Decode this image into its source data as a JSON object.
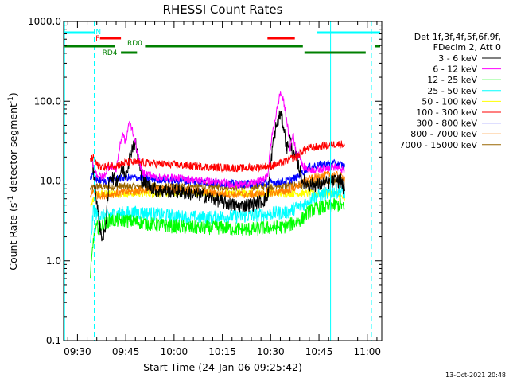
{
  "chart_data": {
    "type": "line",
    "title": "RHESSI Count Rates",
    "xlabel": "Start Time (24-Jan-06 09:25:42)",
    "ylabel_parts": [
      "Count Rate (s",
      "-1",
      " detector segment",
      "-1",
      ")"
    ],
    "y_scale": "log",
    "ylim": [
      0.1,
      1000
    ],
    "xlim": [
      "09:25:42",
      "11:04:30"
    ],
    "x_ticks": [
      "09:30",
      "09:45",
      "10:00",
      "10:15",
      "10:30",
      "10:45",
      "11:00"
    ],
    "x_tick_minutes": [
      570,
      585,
      600,
      615,
      630,
      645,
      660
    ],
    "y_ticks": [
      "0.1",
      "1.0",
      "10.0",
      "100.0",
      "1000.0"
    ],
    "y_tick_values": [
      0.1,
      1,
      10,
      100,
      1000
    ],
    "legend": {
      "header": [
        "Det 1f,3f,4f,5f,6f,9f,",
        "FDecim 2, Att 0"
      ],
      "placement": "right"
    },
    "series": [
      {
        "name": "3 - 6 keV",
        "color": "#000000",
        "x": [
          574.5,
          576,
          577,
          578,
          579,
          580,
          582,
          584,
          585,
          587,
          588,
          590,
          595,
          600,
          605,
          610,
          615,
          620,
          625,
          629,
          630.5,
          631.5,
          633,
          634,
          635,
          636,
          637,
          638,
          639,
          640,
          642,
          645,
          648,
          650,
          652,
          653
        ],
        "y": [
          20,
          5.5,
          2.5,
          1.8,
          3.5,
          12,
          10,
          14,
          12,
          27,
          30,
          10,
          7.5,
          7.5,
          7,
          6.5,
          5.5,
          4.8,
          5.2,
          6.0,
          25,
          45,
          70,
          50,
          25,
          35,
          20,
          20,
          14,
          10,
          9,
          9,
          9.5,
          10,
          10,
          7
        ]
      },
      {
        "name": "6 - 12 keV",
        "color": "#ff00ff",
        "x": [
          574.5,
          576,
          578,
          580,
          582,
          583,
          584,
          585,
          586,
          587,
          588,
          590,
          595,
          600,
          605,
          610,
          615,
          620,
          625,
          629,
          630,
          631,
          632,
          633,
          634,
          635,
          636,
          637,
          638,
          639,
          640,
          642,
          645,
          648,
          650,
          652,
          653
        ],
        "y": [
          18,
          12,
          11,
          16,
          14,
          25,
          40,
          30,
          55,
          45,
          30,
          13,
          11,
          11,
          10.5,
          10,
          9.5,
          9,
          9.5,
          11,
          28,
          50,
          80,
          130,
          100,
          60,
          25,
          40,
          20,
          22,
          15,
          14,
          14,
          15,
          15,
          14,
          13
        ]
      },
      {
        "name": "12 - 25 keV",
        "color": "#00ff00",
        "x": [
          574,
          575,
          576,
          578,
          580,
          585,
          590,
          595,
          600,
          605,
          610,
          615,
          620,
          625,
          630,
          635,
          640,
          642,
          645,
          648,
          650,
          652,
          653
        ],
        "y": [
          0.6,
          2.0,
          2.6,
          2.8,
          3.2,
          3.2,
          3.0,
          2.8,
          2.7,
          2.6,
          2.6,
          2.6,
          2.5,
          2.5,
          2.6,
          2.7,
          3.4,
          4.2,
          4.6,
          4.8,
          5.0,
          5.0,
          4.2
        ]
      },
      {
        "name": "25 - 50 keV",
        "color": "#00ffff",
        "x": [
          574,
          575,
          576,
          578,
          580,
          585,
          590,
          595,
          600,
          605,
          610,
          615,
          620,
          625,
          630,
          635,
          640,
          642,
          645,
          648,
          650,
          652,
          653
        ],
        "y": [
          1.5,
          4.5,
          3.8,
          3.6,
          3.8,
          4.0,
          4.0,
          3.8,
          3.6,
          3.5,
          3.5,
          3.6,
          3.6,
          3.7,
          3.9,
          4.1,
          5.0,
          6.0,
          6.6,
          7.0,
          7.5,
          7.5,
          7.0
        ]
      },
      {
        "name": "50 - 100 keV",
        "color": "#ffff00",
        "x": [
          574,
          576,
          580,
          590,
          600,
          610,
          620,
          630,
          640,
          645,
          650,
          653
        ],
        "y": [
          5,
          7,
          7,
          7,
          7,
          7,
          7,
          7,
          7,
          7,
          7,
          6
        ]
      },
      {
        "name": "100 - 300 keV",
        "color": "#ff0000",
        "x": [
          574,
          575,
          576,
          578,
          580,
          583,
          585,
          590,
          595,
          600,
          605,
          610,
          615,
          620,
          625,
          630,
          634,
          636,
          638,
          640,
          642,
          645,
          648,
          650,
          652,
          653
        ],
        "y": [
          18,
          20,
          16,
          15,
          15.5,
          16,
          17,
          17,
          16.5,
          16,
          15.5,
          15,
          14.8,
          14.5,
          14.8,
          15.5,
          17,
          19,
          20,
          24,
          26,
          27,
          28,
          29,
          29,
          28
        ]
      },
      {
        "name": "300 - 800 keV",
        "color": "#0000ff",
        "x": [
          574,
          575,
          576,
          578,
          580,
          585,
          590,
          595,
          600,
          605,
          610,
          615,
          620,
          625,
          630,
          635,
          638,
          640,
          642,
          645,
          648,
          650,
          652,
          653
        ],
        "y": [
          11,
          12,
          10.5,
          10,
          10.5,
          11,
          11,
          10.5,
          10.2,
          10,
          9.6,
          9.4,
          9.2,
          9.2,
          9.5,
          10,
          11,
          13,
          15,
          16,
          16.5,
          16.5,
          16,
          15
        ]
      },
      {
        "name": "800 - 7000 keV",
        "color": "#ff8000",
        "x": [
          574,
          575,
          576,
          578,
          580,
          585,
          590,
          595,
          600,
          605,
          610,
          615,
          620,
          625,
          630,
          635,
          638,
          640,
          642,
          645,
          648,
          650,
          652,
          653
        ],
        "y": [
          6.5,
          7.5,
          6.8,
          6.6,
          6.8,
          7.2,
          7.6,
          7.8,
          7.8,
          7.6,
          7.2,
          6.9,
          6.8,
          6.8,
          7.1,
          7.5,
          8.5,
          9.6,
          10.5,
          11.5,
          12,
          12,
          11.5,
          11
        ]
      },
      {
        "name": "7000 - 15000 keV",
        "color": "#996600",
        "x": [
          574,
          576,
          580,
          590,
          600,
          610,
          620,
          630,
          640,
          645,
          650,
          653
        ],
        "y": [
          8,
          8.5,
          8.5,
          8.5,
          8.5,
          8.5,
          8.5,
          8.5,
          9,
          9.5,
          10,
          10
        ]
      }
    ],
    "flag_bars": [
      {
        "label": "N",
        "color": "#00ffff",
        "segments": [
          [
            566,
            575.5
          ],
          [
            644.5,
            664
          ]
        ],
        "level": 1
      },
      {
        "label": "F",
        "color": "#ff0000",
        "segments": [
          [
            577,
            583.5
          ],
          [
            629,
            637.5
          ]
        ],
        "level": 2
      },
      {
        "label": "RD0",
        "color": "#008000",
        "segments": [
          [
            566,
            581.5
          ],
          [
            591,
            640
          ],
          [
            662.5,
            664
          ]
        ],
        "level": 3
      },
      {
        "label": "RD4",
        "color": "#008000",
        "segments": [
          [
            583.5,
            588.5
          ],
          [
            640.5,
            659.5
          ]
        ],
        "level": 4
      }
    ],
    "vlines": [
      {
        "x": 566,
        "color": "#00ffff",
        "style": "solid"
      },
      {
        "x": 575.2,
        "color": "#00ffff",
        "style": "dashed"
      },
      {
        "x": 648.6,
        "color": "#00ffff",
        "style": "solid"
      },
      {
        "x": 661.3,
        "color": "#00ffff",
        "style": "dashed"
      }
    ]
  },
  "footer": {
    "timestamp": "13-Oct-2021 20:48"
  }
}
